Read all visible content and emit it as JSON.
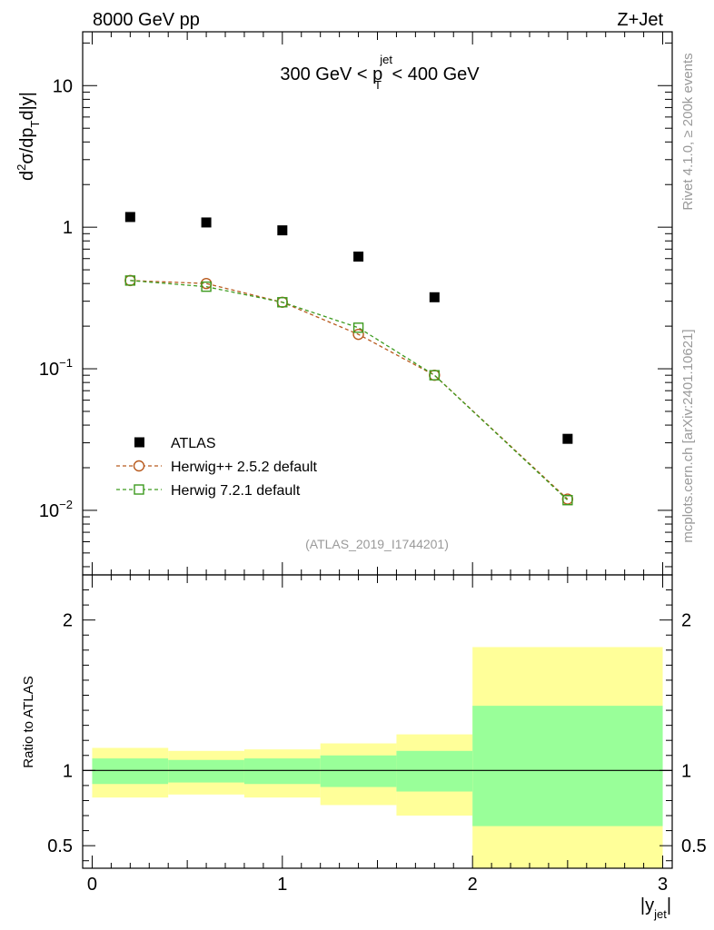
{
  "header": {
    "left": "8000 GeV pp",
    "right": "Z+Jet"
  },
  "side_labels": {
    "rivet": "Rivet 4.1.0, ≥ 200k events",
    "mcplots": "mcplots.cern.ch [arXiv:2401.10621]"
  },
  "watermark": "(ATLAS_2019_I1744201)",
  "colors": {
    "atlas": "#000000",
    "herwigpp": "#b85a1e",
    "herwig7": "#3c9a1e",
    "band_inner": "#99ff99",
    "band_outer": "#ffff99"
  },
  "chart_data": [
    {
      "type": "scatter",
      "title_main": "300 GeV < p",
      "title_sup": "jet",
      "title_sub": "T",
      "title_tail": " < 400 GeV",
      "ylabel_main": "d",
      "ylabel_sup": "2",
      "ylabel_mid": "σ/dp",
      "ylabel_sub": "T",
      "ylabel_tail": "d|y|",
      "yscale": "log",
      "ylim": [
        0.0035,
        24
      ],
      "xlim": [
        -0.05,
        3.05
      ],
      "yticks": [
        {
          "v": 10,
          "label": "10",
          "sup": ""
        },
        {
          "v": 1,
          "label": "1",
          "sup": ""
        },
        {
          "v": 0.1,
          "label": "10",
          "sup": "−1"
        },
        {
          "v": 0.01,
          "label": "10",
          "sup": "−2"
        }
      ],
      "legend": {
        "position": "bottom-left",
        "entries": [
          "ATLAS",
          "Herwig++ 2.5.2 default",
          "Herwig 7.2.1 default"
        ]
      },
      "series": [
        {
          "name": "ATLAS",
          "style": "marker-square-filled",
          "x": [
            0.2,
            0.6,
            1.0,
            1.4,
            1.8,
            2.5
          ],
          "y": [
            1.18,
            1.08,
            0.95,
            0.62,
            0.32,
            0.032
          ]
        },
        {
          "name": "Herwig++ 2.5.2 default",
          "style": "marker-circle-open-dashed",
          "x": [
            0.2,
            0.6,
            1.0,
            1.4,
            1.8,
            2.5
          ],
          "y": [
            0.42,
            0.4,
            0.295,
            0.175,
            0.09,
            0.012
          ]
        },
        {
          "name": "Herwig 7.2.1 default",
          "style": "marker-square-open-dashed",
          "x": [
            0.2,
            0.6,
            1.0,
            1.4,
            1.8,
            2.5
          ],
          "y": [
            0.42,
            0.38,
            0.295,
            0.195,
            0.09,
            0.0118
          ]
        }
      ]
    },
    {
      "type": "area",
      "ylabel": "Ratio to ATLAS",
      "xlabel_main": "|y",
      "xlabel_sub": "jet",
      "xlabel_tail": "|",
      "xlim": [
        -0.05,
        3.05
      ],
      "ylim": [
        0.35,
        2.3
      ],
      "xticks": [
        "0",
        "1",
        "2",
        "3"
      ],
      "yticks": [
        "0.5",
        "1",
        "2"
      ],
      "reference_line": 1,
      "bins": [
        {
          "lo": 0.0,
          "hi": 0.4,
          "inner": [
            0.91,
            1.08
          ],
          "outer": [
            0.82,
            1.15
          ]
        },
        {
          "lo": 0.4,
          "hi": 0.8,
          "inner": [
            0.92,
            1.07
          ],
          "outer": [
            0.84,
            1.13
          ]
        },
        {
          "lo": 0.8,
          "hi": 1.2,
          "inner": [
            0.91,
            1.08
          ],
          "outer": [
            0.82,
            1.14
          ]
        },
        {
          "lo": 1.2,
          "hi": 1.6,
          "inner": [
            0.89,
            1.1
          ],
          "outer": [
            0.77,
            1.18
          ]
        },
        {
          "lo": 1.6,
          "hi": 2.0,
          "inner": [
            0.86,
            1.13
          ],
          "outer": [
            0.7,
            1.24
          ]
        },
        {
          "lo": 2.0,
          "hi": 3.0,
          "inner": [
            0.63,
            1.43
          ],
          "outer": [
            0.35,
            1.82
          ]
        }
      ]
    }
  ]
}
